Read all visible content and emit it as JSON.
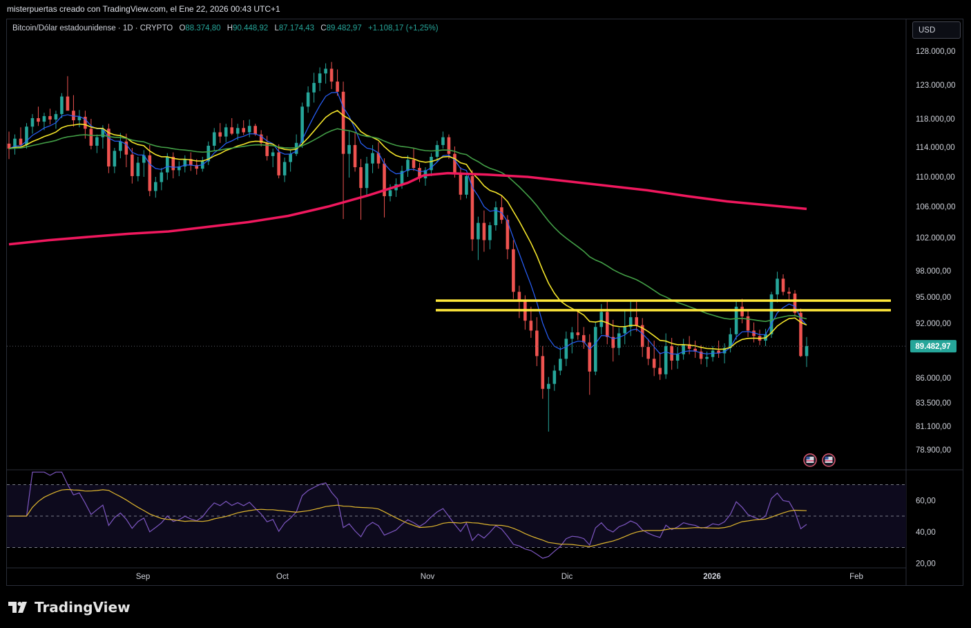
{
  "caption": "misterpuertas creado con TradingView.com, el Ene 22, 2026 00:43 UTC+1",
  "legend": {
    "symbol": "Bitcoin/Dólar estadounidense · 1D · CRYPTO",
    "o_label": "O",
    "o": "88.374,80",
    "h_label": "H",
    "h": "90.448,92",
    "l_label": "L",
    "l": "87.174,43",
    "c_label": "C",
    "c": "89.482,97",
    "change": "+1.108,17 (+1,25%)"
  },
  "currency_button": "USD",
  "brand": "TradingView",
  "colors": {
    "up": "#26a69a",
    "down": "#ef5350",
    "ema_fast": "#2962ff",
    "ema_mid": "#f5e62a",
    "ema_slow": "#43a047",
    "ma200": "#f0185e",
    "level": "#ffe83b",
    "rsi": "#7e57c2",
    "rsi_ma": "#e0b72e"
  },
  "chart_data": {
    "type": "candlestick",
    "x_ticks": [
      "Sep",
      "Oct",
      "Nov",
      "Dic",
      "2026",
      "Feb"
    ],
    "price_axis": [
      "128.000,00",
      "123.000,00",
      "118.000,00",
      "114.000,00",
      "110.000,00",
      "106.000,00",
      "102.000,00",
      "98.000,00",
      "95.000,00",
      "92.000,00",
      "86.000,00",
      "83.500,00",
      "81.100,00",
      "78.900,00"
    ],
    "price_axis_values": [
      128000,
      123000,
      118000,
      114000,
      110000,
      106000,
      102000,
      98000,
      95000,
      92000,
      86000,
      83500,
      81100,
      78900
    ],
    "last_price_label": "89.482,97",
    "last_price": 89482.97,
    "horizontal_levels": [
      94600,
      93500
    ],
    "candles_ohlc": [
      [
        114500,
        116200,
        112400,
        113800
      ],
      [
        113800,
        115800,
        113000,
        115200
      ],
      [
        115200,
        116800,
        113900,
        114300
      ],
      [
        114300,
        117400,
        113800,
        116900
      ],
      [
        116900,
        118700,
        115900,
        118100
      ],
      [
        118100,
        119800,
        117000,
        117600
      ],
      [
        117600,
        118900,
        116400,
        118400
      ],
      [
        118400,
        119500,
        117200,
        117900
      ],
      [
        117900,
        119200,
        116600,
        118700
      ],
      [
        118700,
        121800,
        118100,
        121300
      ],
      [
        121300,
        124300,
        120400,
        119200
      ],
      [
        119200,
        121500,
        116900,
        117800
      ],
      [
        117800,
        119300,
        116800,
        118300
      ],
      [
        118300,
        119200,
        115200,
        116600
      ],
      [
        116600,
        118000,
        113700,
        114200
      ],
      [
        114200,
        115800,
        113200,
        115400
      ],
      [
        115400,
        117100,
        113800,
        116600
      ],
      [
        116600,
        117300,
        110500,
        111400
      ],
      [
        111400,
        113900,
        110500,
        113500
      ],
      [
        113500,
        116000,
        112500,
        114800
      ],
      [
        114800,
        115900,
        111300,
        113000
      ],
      [
        113000,
        113900,
        109100,
        110100
      ],
      [
        110100,
        112700,
        109400,
        111900
      ],
      [
        111900,
        113600,
        110000,
        112900
      ],
      [
        112900,
        114300,
        107400,
        108100
      ],
      [
        108100,
        110000,
        107200,
        109300
      ],
      [
        109300,
        111200,
        108200,
        110600
      ],
      [
        110600,
        113200,
        109600,
        112700
      ],
      [
        112700,
        113300,
        109800,
        110900
      ],
      [
        110900,
        112100,
        110100,
        111400
      ],
      [
        111400,
        112900,
        110600,
        112400
      ],
      [
        112400,
        113300,
        110800,
        111600
      ],
      [
        111600,
        112400,
        110300,
        111100
      ],
      [
        111100,
        112700,
        110700,
        112100
      ],
      [
        112100,
        114800,
        111600,
        114200
      ],
      [
        114200,
        116700,
        113500,
        116100
      ],
      [
        116100,
        117400,
        114600,
        115500
      ],
      [
        115500,
        117300,
        114700,
        116800
      ],
      [
        116800,
        118100,
        115700,
        115900
      ],
      [
        115900,
        117300,
        115000,
        116700
      ],
      [
        116700,
        117800,
        115700,
        116100
      ],
      [
        116100,
        117900,
        115400,
        117000
      ],
      [
        117000,
        117300,
        115600,
        115800
      ],
      [
        115800,
        116400,
        114100,
        114600
      ],
      [
        114600,
        115600,
        112200,
        112800
      ],
      [
        112800,
        113800,
        111300,
        113300
      ],
      [
        113300,
        114400,
        109800,
        110200
      ],
      [
        110200,
        112600,
        109300,
        112000
      ],
      [
        112000,
        113600,
        110700,
        113100
      ],
      [
        113100,
        115800,
        112800,
        114600
      ],
      [
        114600,
        120400,
        113900,
        119800
      ],
      [
        119800,
        122800,
        118900,
        121900
      ],
      [
        121900,
        124800,
        120400,
        123300
      ],
      [
        123300,
        125600,
        122100,
        124700
      ],
      [
        124700,
        126200,
        123200,
        125400
      ],
      [
        125400,
        126400,
        122400,
        123500
      ],
      [
        123500,
        125300,
        121400,
        122000
      ],
      [
        122000,
        123500,
        104400,
        113100
      ],
      [
        113100,
        116300,
        109900,
        114300
      ],
      [
        114300,
        116100,
        110700,
        111300
      ],
      [
        111300,
        112400,
        104300,
        108500
      ],
      [
        108500,
        112700,
        107300,
        111800
      ],
      [
        111800,
        114300,
        110500,
        113200
      ],
      [
        113200,
        114700,
        111100,
        111800
      ],
      [
        111800,
        112500,
        104600,
        107400
      ],
      [
        107400,
        109000,
        106700,
        108200
      ],
      [
        108200,
        109800,
        107300,
        109000
      ],
      [
        109000,
        111500,
        108400,
        110800
      ],
      [
        110800,
        112900,
        110000,
        112300
      ],
      [
        112300,
        113800,
        110800,
        111200
      ],
      [
        111200,
        111900,
        109300,
        109800
      ],
      [
        109800,
        111300,
        108800,
        110900
      ],
      [
        110900,
        113200,
        110100,
        112700
      ],
      [
        112700,
        114900,
        112000,
        114300
      ],
      [
        114300,
        116200,
        113800,
        115400
      ],
      [
        115400,
        115800,
        112400,
        113100
      ],
      [
        113100,
        114100,
        109900,
        110400
      ],
      [
        110400,
        111300,
        106900,
        107600
      ],
      [
        107600,
        110500,
        107100,
        110100
      ],
      [
        110100,
        110900,
        100400,
        101800
      ],
      [
        101800,
        104700,
        99300,
        103900
      ],
      [
        103900,
        105500,
        100300,
        101700
      ],
      [
        101700,
        104000,
        100600,
        103600
      ],
      [
        103600,
        106700,
        102900,
        105900
      ],
      [
        105900,
        107400,
        103800,
        104300
      ],
      [
        104300,
        104900,
        99400,
        100600
      ],
      [
        100600,
        101700,
        94800,
        95600
      ],
      [
        95600,
        96300,
        92600,
        94500
      ],
      [
        94500,
        95200,
        91300,
        92300
      ],
      [
        92300,
        93900,
        90400,
        91200
      ],
      [
        91200,
        92700,
        87300,
        88400
      ],
      [
        88400,
        89500,
        83900,
        84900
      ],
      [
        84900,
        86100,
        80600,
        85400
      ],
      [
        85400,
        87400,
        84700,
        86800
      ],
      [
        86800,
        89400,
        86300,
        88100
      ],
      [
        88100,
        91100,
        87300,
        90300
      ],
      [
        90300,
        91600,
        88700,
        91000
      ],
      [
        91000,
        93300,
        90200,
        90700
      ],
      [
        90700,
        91600,
        89200,
        89900
      ],
      [
        89900,
        90800,
        84300,
        86700
      ],
      [
        86700,
        92200,
        86300,
        91600
      ],
      [
        91600,
        94200,
        90800,
        93300
      ],
      [
        93300,
        94600,
        89700,
        90500
      ],
      [
        90500,
        92400,
        87800,
        89300
      ],
      [
        89300,
        91500,
        88500,
        90900
      ],
      [
        90900,
        93400,
        89700,
        91600
      ],
      [
        91600,
        94500,
        90600,
        92700
      ],
      [
        92700,
        94600,
        91100,
        91800
      ],
      [
        91800,
        92600,
        88300,
        89400
      ],
      [
        89400,
        90300,
        87400,
        88100
      ],
      [
        88100,
        90100,
        86200,
        87100
      ],
      [
        87100,
        88800,
        85800,
        86400
      ],
      [
        86400,
        90900,
        85900,
        89500
      ],
      [
        89500,
        90400,
        86900,
        87900
      ],
      [
        87900,
        89400,
        87000,
        88600
      ],
      [
        88600,
        90300,
        88000,
        89700
      ],
      [
        89700,
        90600,
        88600,
        89200
      ],
      [
        89200,
        90100,
        88200,
        88900
      ],
      [
        88900,
        89600,
        87500,
        88100
      ],
      [
        88100,
        88900,
        87200,
        88300
      ],
      [
        88300,
        89500,
        87800,
        89000
      ],
      [
        89000,
        90100,
        88200,
        88700
      ],
      [
        88700,
        89800,
        87600,
        89300
      ],
      [
        89300,
        91500,
        88800,
        90800
      ],
      [
        90800,
        94600,
        90200,
        93900
      ],
      [
        93900,
        94800,
        92000,
        92800
      ],
      [
        92800,
        93600,
        90500,
        91200
      ],
      [
        91200,
        92100,
        89900,
        90600
      ],
      [
        90600,
        91300,
        89600,
        90100
      ],
      [
        90100,
        91400,
        89500,
        90800
      ],
      [
        90800,
        95600,
        90400,
        95300
      ],
      [
        95300,
        97900,
        94400,
        97100
      ],
      [
        97100,
        97600,
        95200,
        95600
      ],
      [
        95600,
        96100,
        94600,
        95400
      ],
      [
        95400,
        95800,
        92800,
        93200
      ],
      [
        93200,
        93700,
        88300,
        88400
      ],
      [
        88400,
        90500,
        87200,
        89500
      ]
    ],
    "ma200_series": [
      [
        0,
        101200
      ],
      [
        0.05,
        101700
      ],
      [
        0.1,
        102100
      ],
      [
        0.15,
        102500
      ],
      [
        0.2,
        102800
      ],
      [
        0.25,
        103400
      ],
      [
        0.3,
        104000
      ],
      [
        0.35,
        104800
      ],
      [
        0.4,
        106000
      ],
      [
        0.45,
        107500
      ],
      [
        0.5,
        109200
      ],
      [
        0.52,
        110200
      ],
      [
        0.55,
        110500
      ],
      [
        0.6,
        110300
      ],
      [
        0.65,
        110000
      ],
      [
        0.7,
        109400
      ],
      [
        0.75,
        108800
      ],
      [
        0.8,
        108200
      ],
      [
        0.85,
        107400
      ],
      [
        0.9,
        106700
      ],
      [
        0.95,
        106200
      ],
      [
        1,
        105700
      ]
    ],
    "rsi": {
      "axis": [
        "60,00",
        "40,00",
        "20,00"
      ],
      "axis_values": [
        60,
        40,
        20
      ],
      "upper_band": 70,
      "mid_band": 50,
      "lower_band": 30
    }
  }
}
